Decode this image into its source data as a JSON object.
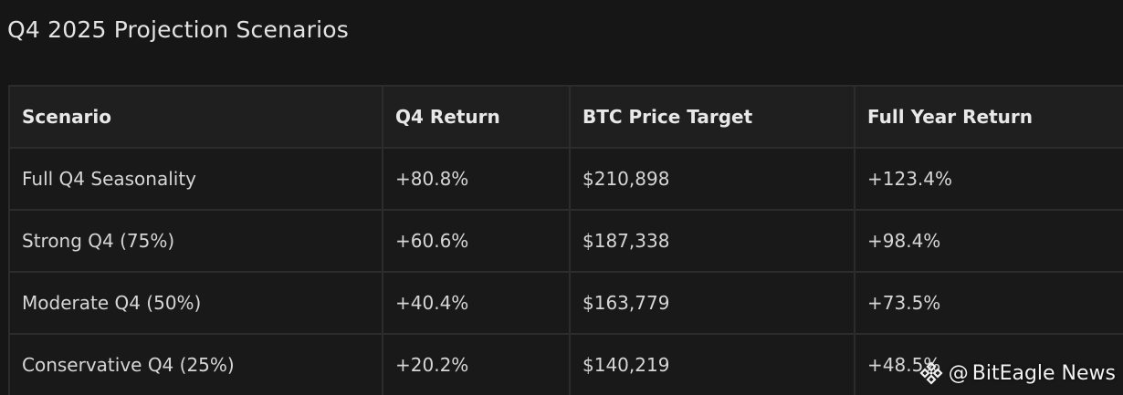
{
  "title": "Q4 2025 Projection Scenarios",
  "table": {
    "headers": [
      "Scenario",
      "Q4 Return",
      "BTC Price Target",
      "Full Year Return"
    ],
    "rows": [
      [
        "Full Q4 Seasonality",
        "+80.8%",
        "$210,898",
        "+123.4%"
      ],
      [
        "Strong Q4 (75%)",
        "+60.6%",
        "$187,338",
        "+98.4%"
      ],
      [
        "Moderate Q4 (50%)",
        "+40.4%",
        "$163,779",
        "+73.5%"
      ],
      [
        "Conservative Q4 (25%)",
        "+20.2%",
        "$140,219",
        "+48.5%"
      ]
    ]
  },
  "watermark": {
    "at": "@",
    "text": "BitEagle News",
    "icon": "diamond-logo-icon"
  }
}
